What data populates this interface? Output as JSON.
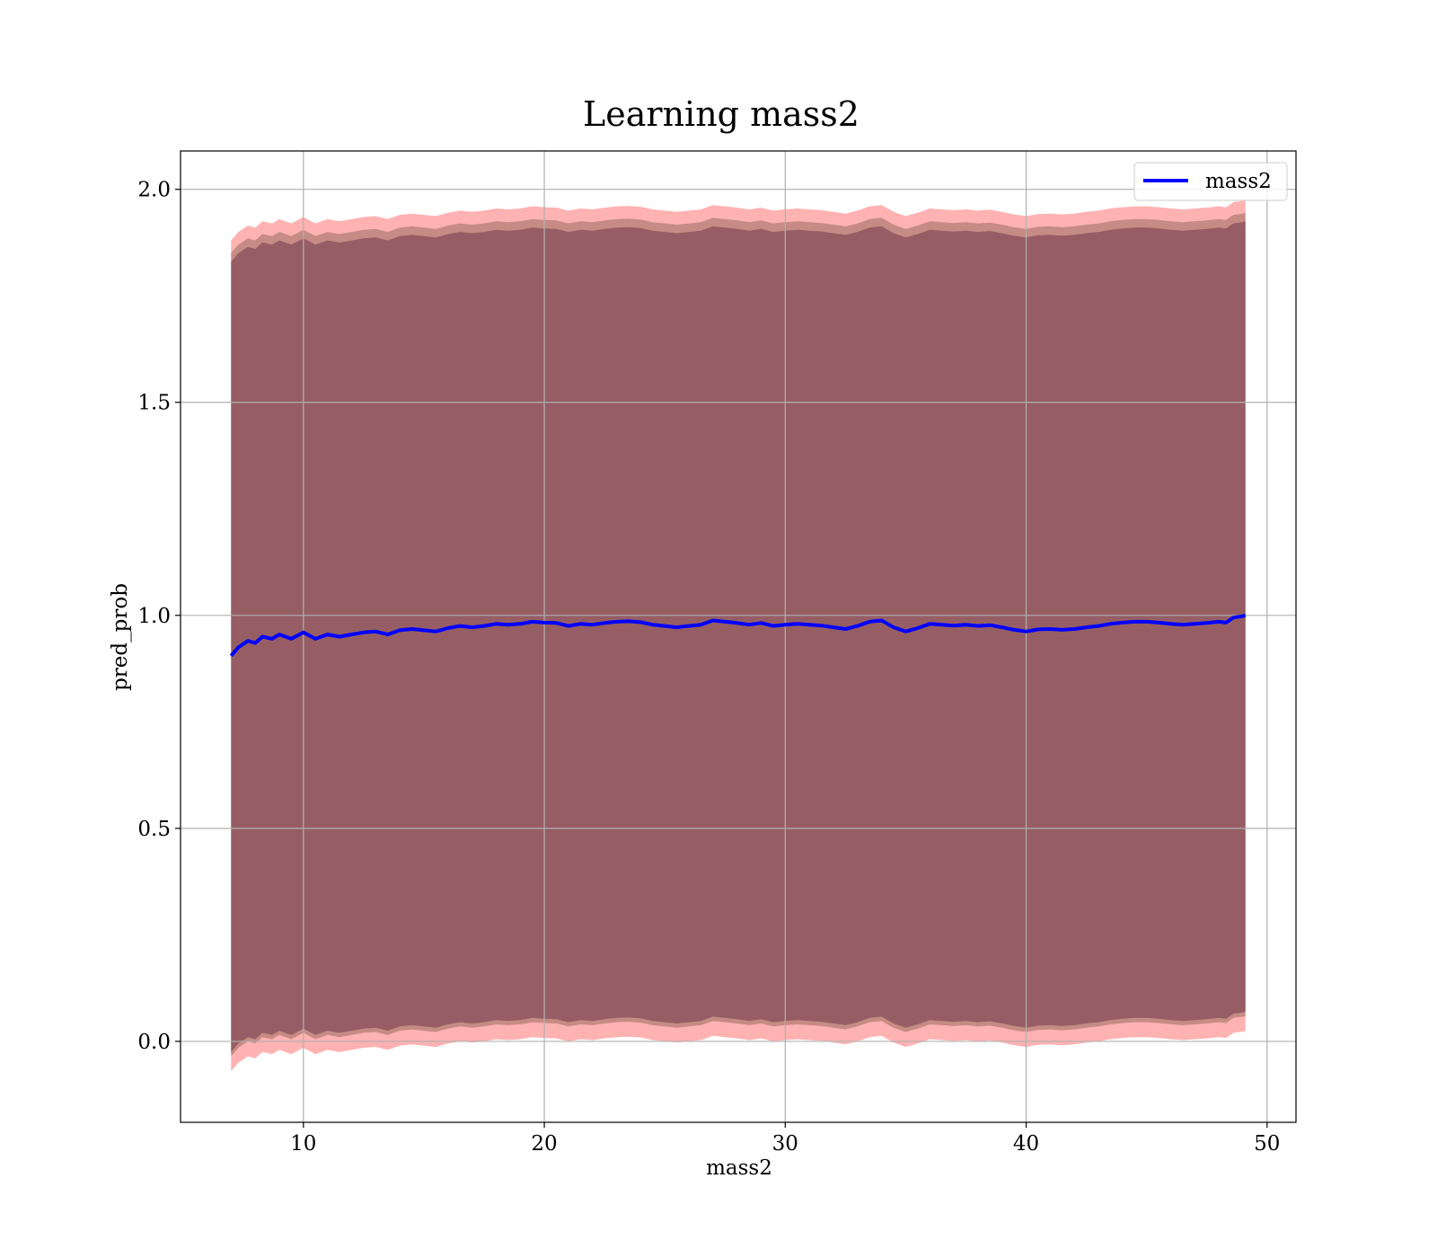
{
  "chart_data": {
    "type": "line",
    "title": "Learning mass2",
    "xlabel": "mass2",
    "ylabel": "pred_prob",
    "xlim": [
      4.9,
      51.2
    ],
    "ylim": [
      -0.19,
      2.09
    ],
    "xticks": [
      10,
      20,
      30,
      40,
      50
    ],
    "yticks": [
      0.0,
      0.5,
      1.0,
      1.5,
      2.0
    ],
    "xtick_labels": [
      "10",
      "20",
      "30",
      "40",
      "50"
    ],
    "ytick_labels": [
      "0.0",
      "0.5",
      "1.0",
      "1.5",
      "2.0"
    ],
    "grid": true,
    "legend_position": "top-right",
    "series": [
      {
        "name": "mass2",
        "color": "#0000ff",
        "x": [
          7.0,
          7.3,
          7.7,
          8.0,
          8.3,
          8.7,
          9.0,
          9.5,
          10.0,
          10.5,
          11.0,
          11.5,
          12.0,
          12.5,
          13.0,
          13.5,
          14.0,
          14.5,
          15.0,
          15.5,
          16.0,
          16.5,
          17.0,
          17.5,
          18.0,
          18.5,
          19.0,
          19.5,
          20.0,
          20.5,
          21.0,
          21.5,
          22.0,
          22.5,
          23.0,
          23.5,
          24.0,
          24.5,
          25.0,
          25.5,
          26.0,
          26.5,
          27.0,
          27.5,
          28.0,
          28.5,
          29.0,
          29.5,
          30.0,
          30.5,
          31.0,
          31.5,
          32.0,
          32.5,
          33.0,
          33.5,
          34.0,
          34.5,
          35.0,
          35.5,
          36.0,
          36.5,
          37.0,
          37.5,
          38.0,
          38.5,
          39.0,
          39.5,
          40.0,
          40.5,
          41.0,
          41.5,
          42.0,
          42.5,
          43.0,
          43.5,
          44.0,
          44.5,
          45.0,
          45.5,
          46.0,
          46.5,
          47.0,
          47.5,
          48.0,
          48.3,
          48.6,
          49.0,
          49.1
        ],
        "y": [
          0.905,
          0.925,
          0.94,
          0.935,
          0.95,
          0.945,
          0.955,
          0.945,
          0.96,
          0.945,
          0.955,
          0.95,
          0.955,
          0.96,
          0.962,
          0.955,
          0.965,
          0.968,
          0.965,
          0.962,
          0.97,
          0.975,
          0.972,
          0.975,
          0.98,
          0.978,
          0.98,
          0.985,
          0.983,
          0.982,
          0.975,
          0.98,
          0.978,
          0.982,
          0.985,
          0.986,
          0.984,
          0.978,
          0.975,
          0.972,
          0.975,
          0.978,
          0.988,
          0.985,
          0.982,
          0.978,
          0.982,
          0.975,
          0.978,
          0.98,
          0.978,
          0.976,
          0.972,
          0.968,
          0.975,
          0.985,
          0.988,
          0.972,
          0.962,
          0.97,
          0.98,
          0.978,
          0.976,
          0.978,
          0.975,
          0.977,
          0.972,
          0.966,
          0.962,
          0.967,
          0.968,
          0.966,
          0.968,
          0.972,
          0.975,
          0.98,
          0.983,
          0.985,
          0.985,
          0.983,
          0.98,
          0.978,
          0.98,
          0.982,
          0.985,
          0.983,
          0.995,
          0.998,
          1.0
        ]
      }
    ],
    "bands": [
      {
        "color": "#ff6666",
        "opacity": 0.5,
        "lower_offset": -0.975,
        "upper_offset": 0.975
      },
      {
        "color": "#8b6355",
        "opacity": 0.5,
        "lower_offset": -0.94,
        "upper_offset": 0.945
      },
      {
        "color": "#6f3a4a",
        "opacity": 0.55,
        "lower_offset": -0.93,
        "upper_offset": 0.925
      }
    ]
  }
}
